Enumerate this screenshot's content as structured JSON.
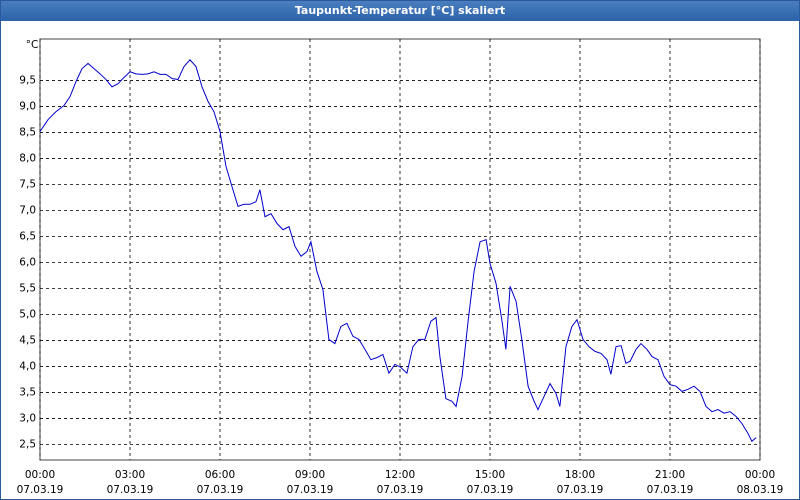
{
  "window_title": "Taupunkt-Temperatur [°C] skaliert",
  "chart_data": {
    "type": "line",
    "y_label": "°C",
    "x": [
      0,
      0.27,
      0.53,
      0.8,
      1.0,
      1.2,
      1.4,
      1.6,
      1.8,
      2.0,
      2.2,
      2.4,
      2.6,
      2.8,
      3.0,
      3.2,
      3.4,
      3.6,
      3.8,
      4.0,
      4.2,
      4.4,
      4.6,
      4.8,
      5.0,
      5.2,
      5.4,
      5.6,
      5.8,
      6.0,
      6.2,
      6.4,
      6.6,
      6.8,
      7.0,
      7.2,
      7.33,
      7.5,
      7.7,
      7.9,
      8.1,
      8.3,
      8.5,
      8.7,
      8.9,
      9.03,
      9.23,
      9.43,
      9.63,
      9.83,
      10.03,
      10.23,
      10.43,
      10.63,
      10.83,
      11.03,
      11.23,
      11.43,
      11.63,
      11.83,
      12.03,
      12.23,
      12.43,
      12.63,
      12.83,
      13.03,
      13.2,
      13.33,
      13.53,
      13.73,
      13.87,
      14.07,
      14.27,
      14.47,
      14.67,
      14.87,
      15.0,
      15.2,
      15.4,
      15.53,
      15.67,
      15.87,
      16.07,
      16.27,
      16.47,
      16.6,
      16.8,
      17.0,
      17.2,
      17.33,
      17.53,
      17.73,
      17.9,
      18.1,
      18.3,
      18.5,
      18.7,
      18.9,
      19.03,
      19.2,
      19.37,
      19.53,
      19.67,
      19.87,
      20.03,
      20.23,
      20.4,
      20.6,
      20.8,
      21.0,
      21.2,
      21.4,
      21.6,
      21.8,
      22.0,
      22.2,
      22.4,
      22.6,
      22.8,
      23.0,
      23.2,
      23.4,
      23.6,
      23.73,
      23.87
    ],
    "series": [
      {
        "color": "#0000cc",
        "values": [
          8.52,
          8.75,
          8.9,
          9.02,
          9.19,
          9.48,
          9.73,
          9.83,
          9.73,
          9.63,
          9.52,
          9.38,
          9.44,
          9.56,
          9.67,
          9.63,
          9.62,
          9.63,
          9.67,
          9.62,
          9.62,
          9.54,
          9.52,
          9.77,
          9.9,
          9.77,
          9.38,
          9.1,
          8.9,
          8.52,
          7.85,
          7.46,
          7.08,
          7.12,
          7.12,
          7.17,
          7.4,
          6.88,
          6.94,
          6.75,
          6.63,
          6.69,
          6.31,
          6.12,
          6.21,
          6.4,
          5.83,
          5.48,
          4.52,
          4.44,
          4.77,
          4.83,
          4.58,
          4.52,
          4.33,
          4.13,
          4.17,
          4.23,
          3.87,
          4.04,
          3.98,
          3.87,
          4.38,
          4.52,
          4.52,
          4.87,
          4.94,
          4.19,
          3.38,
          3.33,
          3.23,
          3.81,
          4.87,
          5.83,
          6.4,
          6.44,
          5.98,
          5.6,
          4.87,
          4.33,
          5.54,
          5.25,
          4.48,
          3.62,
          3.33,
          3.17,
          3.42,
          3.67,
          3.48,
          3.23,
          4.38,
          4.77,
          4.9,
          4.52,
          4.38,
          4.29,
          4.25,
          4.13,
          3.85,
          4.38,
          4.4,
          4.06,
          4.1,
          4.33,
          4.44,
          4.33,
          4.19,
          4.13,
          3.81,
          3.65,
          3.62,
          3.52,
          3.56,
          3.62,
          3.52,
          3.23,
          3.13,
          3.17,
          3.1,
          3.13,
          3.04,
          2.9,
          2.71,
          2.56,
          2.63
        ]
      }
    ],
    "xlim": [
      0,
      24
    ],
    "xticks": [
      {
        "value": 0,
        "label": "00:00",
        "date": "07.03.19"
      },
      {
        "value": 3,
        "label": "03:00",
        "date": "07.03.19"
      },
      {
        "value": 6,
        "label": "06:00",
        "date": "07.03.19"
      },
      {
        "value": 9,
        "label": "09:00",
        "date": "07.03.19"
      },
      {
        "value": 12,
        "label": "12:00",
        "date": "07.03.19"
      },
      {
        "value": 15,
        "label": "15:00",
        "date": "07.03.19"
      },
      {
        "value": 18,
        "label": "18:00",
        "date": "07.03.19"
      },
      {
        "value": 21,
        "label": "21:00",
        "date": "07.03.19"
      },
      {
        "value": 24,
        "label": "00:00",
        "date": "08.03.19"
      }
    ],
    "ylim": [
      2.2,
      10.3
    ],
    "yticks": [
      {
        "value": 2.5,
        "label": "2,5"
      },
      {
        "value": 3,
        "label": "3,0"
      },
      {
        "value": 3.5,
        "label": "3,5"
      },
      {
        "value": 4,
        "label": "4,0"
      },
      {
        "value": 4.5,
        "label": "4,5"
      },
      {
        "value": 5,
        "label": "5,0"
      },
      {
        "value": 5.5,
        "label": "5,5"
      },
      {
        "value": 6,
        "label": "6,0"
      },
      {
        "value": 6.5,
        "label": "6,5"
      },
      {
        "value": 7,
        "label": "7,0"
      },
      {
        "value": 7.5,
        "label": "7,5"
      },
      {
        "value": 8,
        "label": "8,0"
      },
      {
        "value": 8.5,
        "label": "8,5"
      },
      {
        "value": 9,
        "label": "9,0"
      },
      {
        "value": 9.5,
        "label": "9,5"
      }
    ],
    "grid": true
  }
}
